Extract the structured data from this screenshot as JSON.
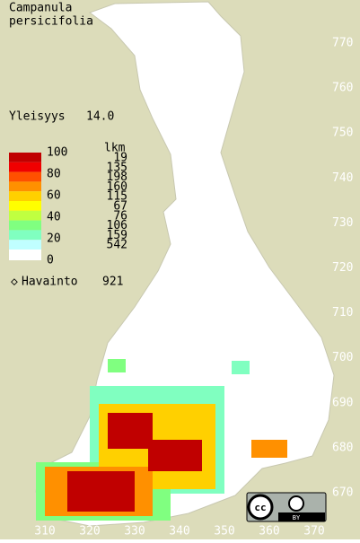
{
  "title": [
    "Campanula",
    "persicifolia"
  ],
  "frequency": {
    "label": "Yleisyys",
    "value": "14.0"
  },
  "legend": {
    "header": "lkm",
    "scale_labels": [
      "100",
      "80",
      "60",
      "40",
      "20",
      "0"
    ],
    "classes": [
      {
        "color": "#c00000",
        "count": 19
      },
      {
        "color": "#f00000",
        "count": 135
      },
      {
        "color": "#ff5000",
        "count": 198
      },
      {
        "color": "#ff9000",
        "count": 160
      },
      {
        "color": "#ffd000",
        "count": 115
      },
      {
        "color": "#ffff00",
        "count": 67
      },
      {
        "color": "#c0ff40",
        "count": 76
      },
      {
        "color": "#80ff80",
        "count": 106
      },
      {
        "color": "#80ffc0",
        "count": 159
      },
      {
        "color": "#c0ffff",
        "count": 542
      }
    ]
  },
  "observations": {
    "symbol": "◇",
    "label": "Havainto",
    "count": 921
  },
  "grid": {
    "north": [
      770,
      760,
      750,
      740,
      730,
      720,
      710,
      700,
      690,
      680,
      670
    ],
    "east": [
      310,
      320,
      330,
      340,
      350,
      360,
      370
    ]
  },
  "license": {
    "icon": "cc",
    "label": "BY"
  }
}
